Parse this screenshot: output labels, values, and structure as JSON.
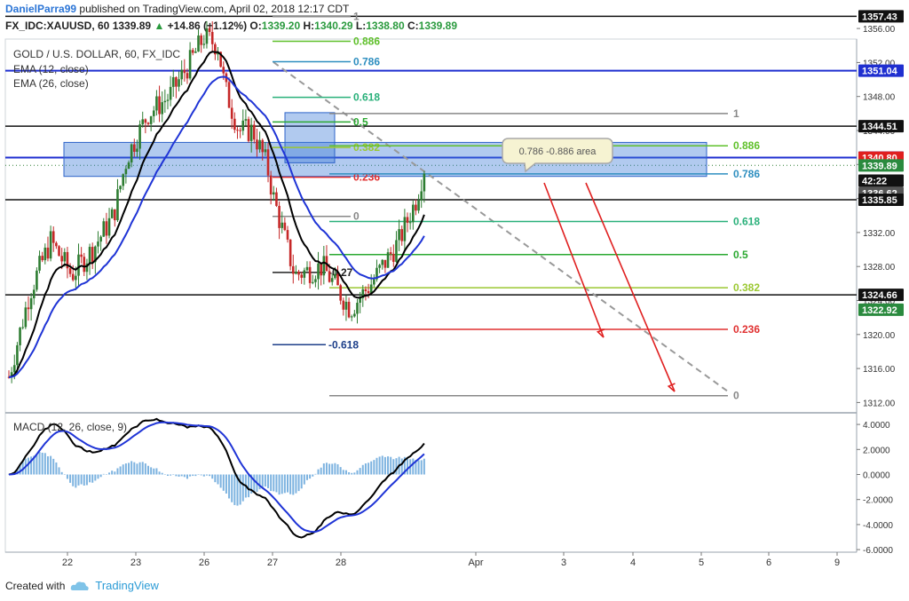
{
  "header": {
    "author": "DanielParra99",
    "published_text": "published on TradingView.com, April 02, 2018 12:17 CDT",
    "symbol": "FX_IDC:XAUUSD, 60",
    "last": "1339.89",
    "change": "+14.86 (+1.12%)",
    "o_label": "O:",
    "o": "1339.20",
    "h_label": "H:",
    "h": "1340.29",
    "l_label": "L:",
    "l": "1338.80",
    "c_label": "C:",
    "c": "1339.89"
  },
  "legend": {
    "title": "GOLD / U.S. DOLLAR, 60, FX_IDC",
    "ema1": "EMA (12, close)",
    "ema2": "EMA (26, close)",
    "macd": "MACD (12, 26, close, 9)"
  },
  "footer": {
    "created_with": "Created with",
    "brand": "TradingView"
  },
  "colors": {
    "ema12": "#000000",
    "ema26": "#1f34d6",
    "up_candle": "#2e7d32",
    "down_candle": "#c62828",
    "zone": "#3d7ad8",
    "macd_hist": "#7db3e0"
  },
  "chart_data": {
    "type": "candlestick",
    "title": "GOLD / U.S. DOLLAR, 60, FX_IDC",
    "x_ticks": [
      "22",
      "23",
      "26",
      "27",
      "28",
      "Apr",
      "3",
      "4",
      "5",
      "6",
      "9"
    ],
    "y_ticks": [
      "1356.00",
      "1352.00",
      "1348.00",
      "1344.00",
      "1340.00",
      "1336.00",
      "1332.00",
      "1328.00",
      "1324.00",
      "1320.00",
      "1316.00",
      "1312.00"
    ],
    "price_labels": [
      {
        "text": "1357.43",
        "value": 1357.43,
        "style": "dark"
      },
      {
        "text": "1351.04",
        "value": 1351.04,
        "style": "blue"
      },
      {
        "text": "1344.51",
        "value": 1344.51,
        "style": "dark"
      },
      {
        "text": "1340.82",
        "value": 1340.82,
        "style": "blue"
      },
      {
        "text": "1340.80",
        "value": 1340.8,
        "style": "red"
      },
      {
        "text": "1339.89",
        "value": 1339.89,
        "style": "green"
      },
      {
        "text": "42:22",
        "value": 1338.1,
        "style": "dark"
      },
      {
        "text": "1336.62",
        "value": 1336.62,
        "style": "grey"
      },
      {
        "text": "1335.85",
        "value": 1335.85,
        "style": "dark"
      },
      {
        "text": "1324.66",
        "value": 1324.66,
        "style": "dark"
      },
      {
        "text": "1322.92",
        "value": 1322.92,
        "style": "green"
      }
    ],
    "horizontal_levels": [
      1357.43,
      1351.04,
      1344.51,
      1340.82,
      1335.85,
      1324.66
    ],
    "fib_levels_left": [
      {
        "label": "1",
        "value": 1357.4,
        "color": "#888888"
      },
      {
        "label": "0.886",
        "value": 1354.5,
        "color": "#5fc02a"
      },
      {
        "label": "0.786",
        "value": 1352.1,
        "color": "#2f8fc0"
      },
      {
        "label": "0.618",
        "value": 1347.9,
        "color": "#29b07a"
      },
      {
        "label": "0.5",
        "value": 1345.0,
        "color": "#2aa830"
      },
      {
        "label": "0.382",
        "value": 1342.0,
        "color": "#9bc832"
      },
      {
        "label": "0.236",
        "value": 1338.5,
        "color": "#e03030"
      },
      {
        "label": "0",
        "value": 1333.9,
        "color": "#888888"
      },
      {
        "label": "-0.27",
        "value": 1327.3,
        "color": "#222222"
      },
      {
        "label": "-0.618",
        "value": 1318.8,
        "color": "#1d3f8a"
      }
    ],
    "fib_levels_right": [
      {
        "label": "1",
        "value": 1346.0,
        "color": "#888888"
      },
      {
        "label": "0.886",
        "value": 1342.2,
        "color": "#5fc02a"
      },
      {
        "label": "0.786",
        "value": 1338.9,
        "color": "#2f8fc0"
      },
      {
        "label": "0.618",
        "value": 1333.3,
        "color": "#29b07a"
      },
      {
        "label": "0.5",
        "value": 1329.4,
        "color": "#2aa830"
      },
      {
        "label": "0.382",
        "value": 1325.5,
        "color": "#9bc832"
      },
      {
        "label": "0.236",
        "value": 1320.6,
        "color": "#e03030"
      },
      {
        "label": "0",
        "value": 1312.8,
        "color": "#888888"
      }
    ],
    "zone": {
      "from": 1338.6,
      "to": 1342.6,
      "label": "0.786 -0.886 area"
    },
    "macd": {
      "name": "MACD (12, 26, close, 9)",
      "y_ticks": [
        "4.0000",
        "2.0000",
        "0.0000",
        "-2.0000",
        "-4.0000",
        "-6.0000"
      ],
      "ylim": [
        -6,
        4.8
      ]
    }
  }
}
